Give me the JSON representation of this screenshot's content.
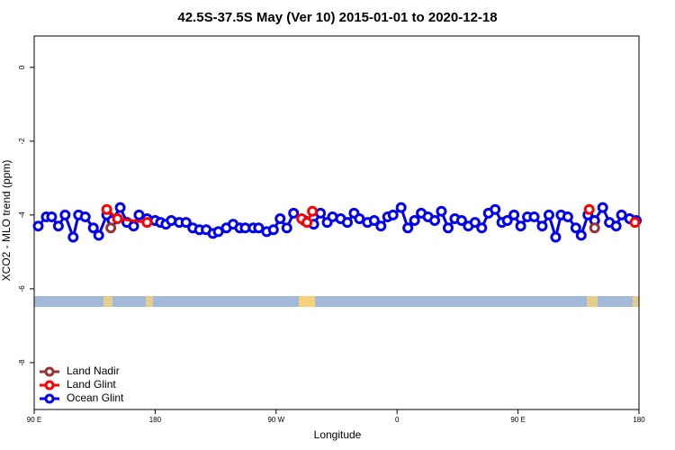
{
  "chart_data": {
    "type": "line",
    "title": "42.5S-37.5S May (Ver 10)   2015-01-01 to 2020-12-18",
    "x_label": "Longitude",
    "y_label": "XCO2 - MLO trend (ppm)",
    "xlim": [
      90,
      540
    ],
    "ylim": [
      -9.27,
      0.85
    ],
    "xticks": [
      {
        "value": 90,
        "label": "90 E"
      },
      180,
      {
        "value": 270,
        "label": "90 W"
      },
      {
        "value": 360,
        "label": "0"
      },
      {
        "value": 450,
        "label": "90 E"
      },
      {
        "value": 540,
        "label": "180"
      }
    ],
    "yticks": [
      0,
      -2,
      -4,
      -6,
      -8
    ],
    "legend": "bottomleft",
    "series": [
      {
        "name": "Land Nadir",
        "color": "#993333",
        "x": [
          147,
          null,
          507
        ],
        "values": [
          -4.35,
          null,
          -4.35
        ]
      },
      {
        "name": "Land Glint",
        "color": "#ff0000",
        "x": [
          144,
          152,
          174,
          null,
          289,
          293,
          297,
          null,
          503,
          null,
          537
        ],
        "values": [
          -3.85,
          -4.1,
          -4.2,
          null,
          -4.1,
          -4.2,
          -3.9,
          null,
          -3.85,
          null,
          -4.2
        ]
      },
      {
        "name": "Ocean Glint",
        "color": "#0000ee",
        "x": [
          93,
          99,
          103,
          108,
          113,
          119,
          123,
          128,
          134,
          138,
          144,
          148,
          154,
          159,
          164,
          168,
          174,
          180,
          184,
          188,
          192,
          198,
          203,
          208,
          213,
          218,
          223,
          227,
          233,
          238,
          243,
          247,
          253,
          257,
          263,
          268,
          273,
          278,
          283,
          291,
          298,
          303,
          308,
          312,
          318,
          323,
          328,
          332,
          338,
          343,
          348,
          353,
          357,
          363,
          368,
          373,
          378,
          383,
          388,
          393,
          398,
          403,
          408,
          413,
          418,
          423,
          428,
          433,
          438,
          442,
          447,
          452,
          457,
          462,
          468,
          473,
          478,
          482,
          487,
          493,
          497,
          502,
          507,
          513,
          518,
          523,
          527,
          533,
          538
        ],
        "values": [
          -4.3,
          -4.05,
          -4.05,
          -4.3,
          -4.0,
          -4.6,
          -4.0,
          -4.05,
          -4.35,
          -4.55,
          -4.0,
          -4.15,
          -3.8,
          -4.2,
          -4.3,
          -4.0,
          -4.1,
          -4.15,
          -4.2,
          -4.25,
          -4.15,
          -4.2,
          -4.2,
          -4.35,
          -4.4,
          -4.4,
          -4.5,
          -4.45,
          -4.35,
          -4.25,
          -4.35,
          -4.35,
          -4.35,
          -4.35,
          -4.45,
          -4.4,
          -4.1,
          -4.35,
          -3.95,
          -4.15,
          -4.25,
          -3.95,
          -4.2,
          -4.05,
          -4.1,
          -4.2,
          -3.95,
          -4.1,
          -4.2,
          -4.15,
          -4.3,
          -4.05,
          -4.0,
          -3.8,
          -4.35,
          -4.15,
          -3.95,
          -4.05,
          -4.15,
          -3.9,
          -4.35,
          -4.1,
          -4.15,
          -4.3,
          -4.2,
          -4.35,
          -3.95,
          -3.85,
          -4.2,
          -4.15,
          -4.0,
          -4.3,
          -4.05,
          -4.05,
          -4.3,
          -4.0,
          -4.6,
          -4.0,
          -4.05,
          -4.35,
          -4.55,
          -4.0,
          -4.15,
          -3.8,
          -4.2,
          -4.3,
          -4.0,
          -4.1,
          -4.15
        ]
      }
    ]
  }
}
